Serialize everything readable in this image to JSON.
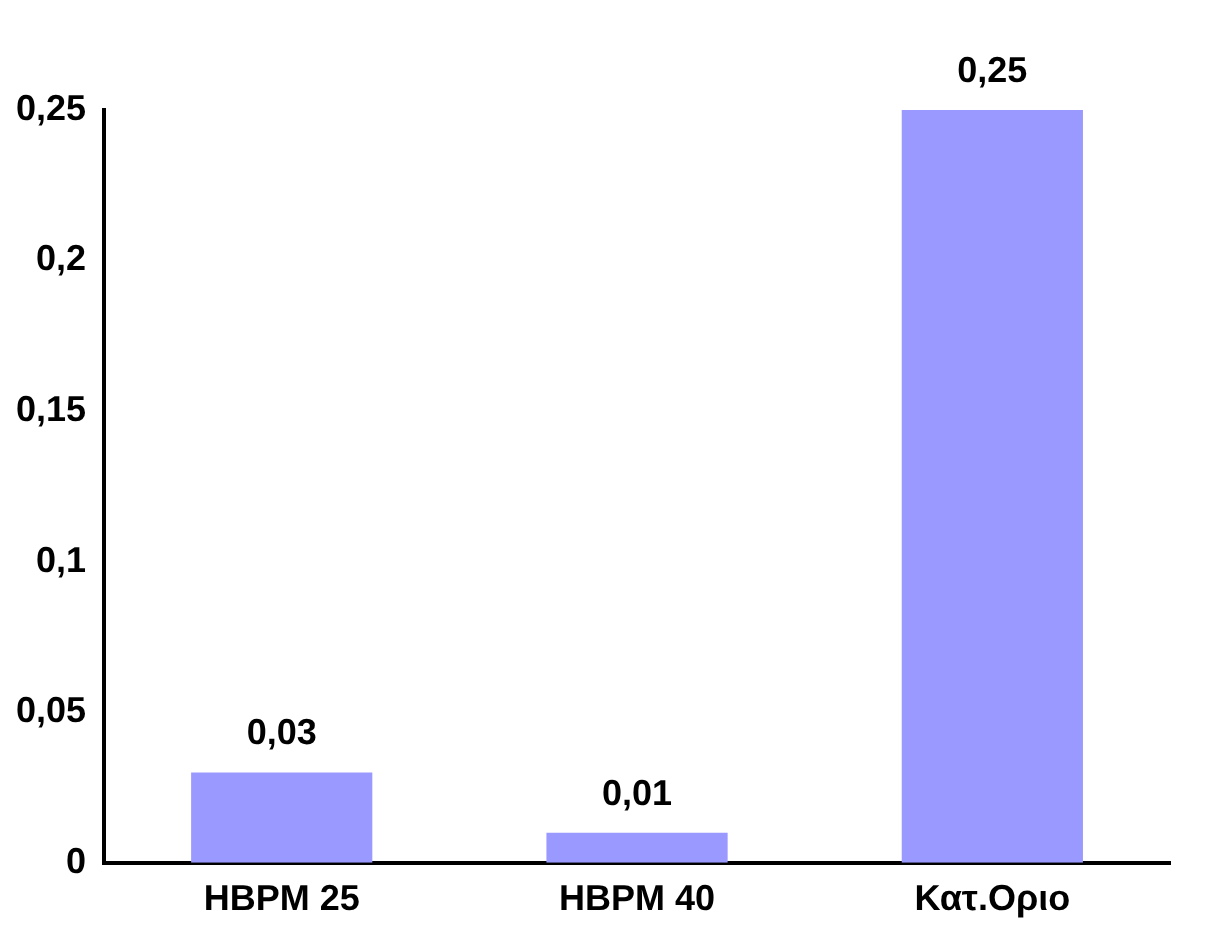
{
  "chart_data": {
    "type": "bar",
    "categories": [
      "HBPM 25",
      "HBPM 40",
      "Κατ.Οριο"
    ],
    "values": [
      0.03,
      0.01,
      0.25
    ],
    "color": "#9999ff",
    "value_labels": [
      "0,03",
      "0,01",
      "0,25"
    ],
    "ylim": [
      0,
      0.25
    ],
    "yticks": [
      {
        "value": 0,
        "label": "0"
      },
      {
        "value": 0.05,
        "label": "0,05"
      },
      {
        "value": 0.1,
        "label": "0,1"
      },
      {
        "value": 0.15,
        "label": "0,15"
      },
      {
        "value": 0.2,
        "label": "0,2"
      },
      {
        "value": 0.25,
        "label": "0,25"
      }
    ],
    "grid": false,
    "legend": false
  }
}
